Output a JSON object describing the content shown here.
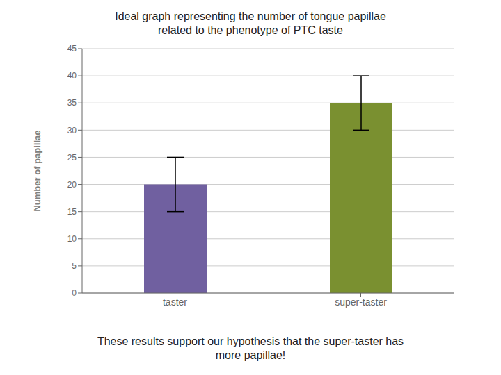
{
  "chart_data": {
    "type": "bar",
    "title": "Ideal graph representing the number of tongue papillae\nrelated to the phenotype of PTC taste",
    "subtitle": "These results support our hypothesis that the super-taster has\nmore papillae!",
    "categories": [
      "taster",
      "super-taster"
    ],
    "values": [
      20,
      35
    ],
    "errors_up": [
      5,
      5
    ],
    "errors_down": [
      5,
      5
    ],
    "colors": [
      "#7060A0",
      "#7A9030"
    ],
    "ylabel": "Number of papillae",
    "ylim": [
      0,
      45
    ],
    "yticks": [
      0,
      5,
      10,
      15,
      20,
      25,
      30,
      35,
      40,
      45
    ],
    "grid": true
  }
}
